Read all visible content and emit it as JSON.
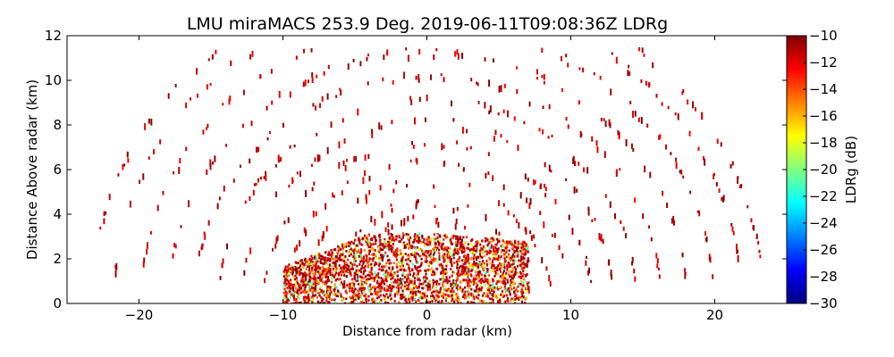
{
  "chart_data": {
    "type": "heatmap",
    "title": "LMU miraMACS 253.9 Deg. 2019-06-11T09:08:36Z  LDRg",
    "xlabel": "Distance from radar (km)",
    "ylabel": "Distance Above radar  (km)",
    "xlim": [
      -25,
      25
    ],
    "ylim": [
      0,
      12
    ],
    "x_ticks": [
      -20,
      -10,
      0,
      10,
      20
    ],
    "x_tick_labels": [
      "−20",
      "−10",
      "0",
      "10",
      "20"
    ],
    "y_ticks": [
      0,
      2,
      4,
      6,
      8,
      10,
      12
    ],
    "y_tick_labels": [
      "0",
      "2",
      "4",
      "6",
      "8",
      "10",
      "12"
    ],
    "grid": false,
    "colorbar": {
      "label": "LDRg (dB)",
      "range": [
        -30,
        -10
      ],
      "ticks": [
        -10,
        -12,
        -14,
        -16,
        -18,
        -20,
        -22,
        -24,
        -26,
        -28,
        -30
      ],
      "tick_labels": [
        "−10",
        "−12",
        "−14",
        "−16",
        "−18",
        "−20",
        "−22",
        "−24",
        "−26",
        "−28",
        "−30"
      ],
      "colormap": "jet",
      "colormap_stops": [
        "#000080",
        "#0000ff",
        "#0080ff",
        "#00ffff",
        "#80ff80",
        "#ffff00",
        "#ff8000",
        "#ff0000",
        "#800000"
      ]
    },
    "fields": {
      "echo_layer": {
        "x_range_km": [
          -10,
          7
        ],
        "top_km": 3.2,
        "ldr_db_range": [
          -22,
          -10
        ]
      },
      "scattered_returns": {
        "x_range_km": [
          -23.5,
          23.5
        ],
        "height_range_km": [
          0,
          11.5
        ],
        "ldr_db_typical": -10
      }
    }
  }
}
